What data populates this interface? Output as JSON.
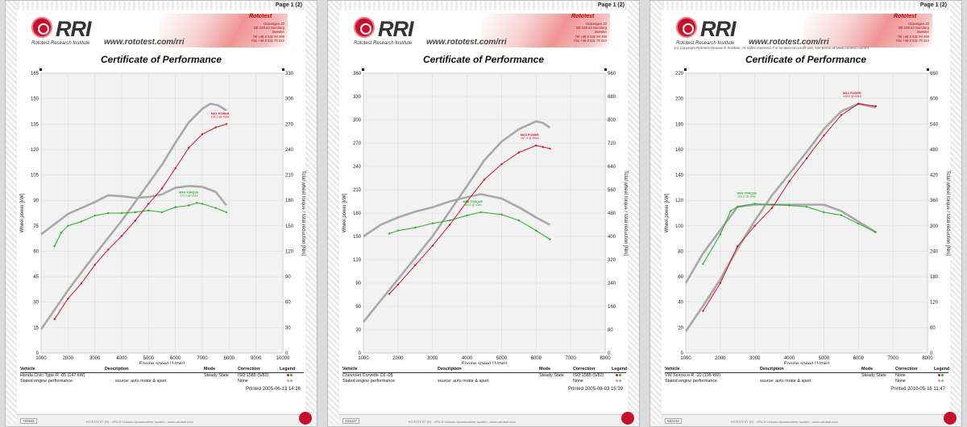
{
  "pages": [
    {
      "page_label": "Page 1 (2)",
      "logo_text": "RRI",
      "logo_sub": "Rototest Research Institute",
      "url": "www.rototest.com/rri",
      "banner_title": "Rototest",
      "banner_lines": "Glasvägen 20\nSE-145 63 Norsborg\nSweden\nTel +46 8 531 94 450\nFax +46 8 531 76 610",
      "copyline": "",
      "certificate_title": "Certificate of Performance",
      "printed": "Printed 2005-06-13 14:36",
      "footer_id": "782641",
      "footer_text": "ROTOTEST (R) - VPA-R chassis dynamometer system - www.rototest.com",
      "table": {
        "headers": {
          "vehicle": "Vehicle",
          "description": "Description",
          "mode": "Mode",
          "correction": "Correction",
          "legend": "Legend"
        },
        "row1": {
          "vehicle": "Honda Civic Type-R -05 (147 kW)",
          "description": "",
          "mode": "Steady State",
          "correction": "ISO 1585 (5/82)"
        },
        "row2": {
          "vehicle": "Stated engine performance",
          "description": "source: auto motor & sport",
          "mode": "",
          "correction": "None"
        }
      }
    },
    {
      "page_label": "Page 1 (2)",
      "logo_text": "RRI",
      "logo_sub": "Rototest Research Institute",
      "url": "www.rototest.com/rri",
      "banner_title": "Rototest",
      "banner_lines": "Glasvägen 20\nSE-145 63 Norsborg\nSweden\nTel +46 8 531 94 450\nFax +46 8 531 76 610",
      "copyline": "",
      "certificate_title": "Certificate of Performance",
      "printed": "Printed 2005-08-03 15:39",
      "footer_id": "231327",
      "footer_text": "ROTOTEST (R) - VPA-R chassis dynamometer system - www.rototest.com",
      "table": {
        "headers": {
          "vehicle": "Vehicle",
          "description": "Description",
          "mode": "Mode",
          "correction": "Correction",
          "legend": "Legend"
        },
        "row1": {
          "vehicle": "Chevrolet Corvette C6 -05",
          "description": "",
          "mode": "Steady State",
          "correction": "ISO 1585 (5/82)"
        },
        "row2": {
          "vehicle": "Stated engine performance",
          "description": "source: auto motor & sport",
          "mode": "",
          "correction": "None"
        }
      }
    },
    {
      "page_label": "Page 1 (2)",
      "logo_text": "RRI",
      "logo_sub": "Rototest Research Institute",
      "url": "www.rototest.com/rri",
      "banner_title": "Rototest",
      "banner_lines": "Glasvägen 20\nSE-145 63 Norsborg\nSweden\nTel +46 8 531 94 450\nFax +46 8 531 76 610",
      "copyline": "(c) Copyright Rototest Research Institute. All rights reserved. For limited non-profit use, see terms at www.rototest.com/rri",
      "certificate_title": "Certificate of Performance",
      "printed": "Printed 2010-05-18 11:47",
      "footer_id": "592194",
      "footer_text": "ROTOTEST (R) - VPA-R chassis dynamometer system - www.rototest.com",
      "table": {
        "headers": {
          "vehicle": "Vehicle",
          "description": "Description",
          "mode": "Mode",
          "correction": "Correction",
          "legend": "Legend"
        },
        "row1": {
          "vehicle": "VW Scirocco R -10 (195 kW)",
          "description": "",
          "mode": "Steady State",
          "correction": "None"
        },
        "row2": {
          "vehicle": "Stated engine performance",
          "description": "source: auto motor & sport",
          "mode": "",
          "correction": "None"
        }
      }
    }
  ],
  "colors": {
    "power": "#d0102a",
    "torque": "#22b022",
    "stated": "#a8a8a8",
    "grid": "#dddddd",
    "plotbg": "#f2f2f2"
  },
  "chart_data": [
    {
      "type": "line",
      "title": "",
      "xlabel": "Engine speed [1/min]",
      "ylabel": "Wheel power [kW]",
      "y2label": "Total wheel torque / total reduction [Nm]",
      "xlim": [
        1000,
        10000
      ],
      "xticks": [
        1000,
        2000,
        3000,
        4000,
        5000,
        6000,
        7000,
        8000,
        9000,
        10000
      ],
      "ylim": [
        0,
        165
      ],
      "yticks": [
        0,
        15,
        30,
        45,
        60,
        75,
        90,
        105,
        120,
        135,
        150,
        165
      ],
      "y2lim": [
        0,
        330
      ],
      "y2ticks": [
        0,
        30,
        60,
        90,
        120,
        150,
        180,
        210,
        240,
        270,
        300,
        330
      ],
      "annotations": {
        "power_label": "MAX POWER",
        "power_value": "135.2 @ 7898",
        "torque_label": "MAX TORQUE",
        "torque_value": "177.2 @ 6814"
      },
      "series": [
        {
          "name": "Wheel power",
          "axis": "y",
          "role": "power",
          "x": [
            1500,
            2000,
            2500,
            3000,
            3500,
            4000,
            4500,
            5000,
            5500,
            6000,
            6500,
            7000,
            7500,
            7900
          ],
          "y": [
            20,
            32,
            41,
            52,
            61,
            69,
            78,
            88,
            97,
            109,
            121,
            129,
            133,
            135
          ]
        },
        {
          "name": "Wheel torque",
          "axis": "y2",
          "role": "torque",
          "x": [
            1500,
            1750,
            2000,
            2500,
            3000,
            3500,
            4000,
            4500,
            5000,
            5500,
            6000,
            6500,
            6800,
            7000,
            7500,
            7900
          ],
          "y": [
            126,
            142,
            150,
            155,
            162,
            165,
            165,
            166,
            168,
            166,
            172,
            174,
            177,
            176,
            171,
            166
          ]
        },
        {
          "name": "Stated power",
          "axis": "y",
          "role": "stated",
          "x": [
            1000,
            2000,
            3000,
            4000,
            5000,
            5500,
            6000,
            6500,
            7000,
            7300,
            7600,
            7900
          ],
          "y": [
            14,
            37,
            58,
            78,
            100,
            111,
            124,
            136,
            144,
            147,
            146,
            143
          ]
        },
        {
          "name": "Stated torque",
          "axis": "y2",
          "role": "stated",
          "x": [
            1000,
            2000,
            3000,
            3500,
            4000,
            4500,
            5000,
            5500,
            6000,
            6500,
            7000,
            7500,
            7900
          ],
          "y": [
            140,
            164,
            178,
            186,
            185,
            183,
            184,
            187,
            195,
            197,
            196,
            190,
            174
          ]
        }
      ]
    },
    {
      "type": "line",
      "title": "",
      "xlabel": "Engine speed [1/min]",
      "ylabel": "Wheel power [kW]",
      "y2label": "Total wheel torque / total reduction [Nm]",
      "xlim": [
        1000,
        8000
      ],
      "xticks": [
        1000,
        2000,
        3000,
        4000,
        5000,
        6000,
        7000,
        8000
      ],
      "ylim": [
        0,
        360
      ],
      "yticks": [
        0,
        30,
        60,
        90,
        120,
        150,
        180,
        210,
        240,
        270,
        300,
        330,
        360
      ],
      "y2lim": [
        0,
        960
      ],
      "y2ticks": [
        0,
        80,
        160,
        240,
        320,
        400,
        480,
        560,
        640,
        720,
        800,
        880,
        960
      ],
      "annotations": {
        "power_label": "MAX POWER",
        "power_value": "267.4 @ 5918",
        "torque_label": "MAX TORQUE",
        "torque_value": "483.3 @ 4401"
      },
      "series": [
        {
          "name": "Wheel power",
          "axis": "y",
          "role": "power",
          "x": [
            1750,
            2000,
            2500,
            3000,
            3500,
            4000,
            4500,
            5000,
            5500,
            6000,
            6200,
            6400
          ],
          "y": [
            76,
            88,
            113,
            138,
            165,
            195,
            223,
            243,
            258,
            267,
            265,
            263
          ],
          "note": ""
        },
        {
          "name": "Wheel torque",
          "axis": "y2",
          "role": "torque",
          "x": [
            1750,
            2000,
            2500,
            3000,
            3500,
            4000,
            4400,
            5000,
            5500,
            6000,
            6400
          ],
          "y": [
            410,
            420,
            430,
            445,
            455,
            472,
            483,
            475,
            455,
            420,
            390
          ]
        },
        {
          "name": "Stated power",
          "axis": "y",
          "role": "stated",
          "x": [
            1000,
            2000,
            3000,
            4000,
            4500,
            5000,
            5500,
            6000,
            6200,
            6400
          ],
          "y": [
            40,
            95,
            150,
            215,
            248,
            272,
            288,
            298,
            296,
            290
          ]
        },
        {
          "name": "Stated torque",
          "axis": "y2",
          "role": "stated",
          "x": [
            1000,
            1500,
            2000,
            2500,
            3000,
            3500,
            4000,
            4400,
            5000,
            5500,
            6000,
            6400
          ],
          "y": [
            400,
            440,
            465,
            485,
            500,
            520,
            535,
            545,
            530,
            500,
            465,
            440
          ]
        }
      ]
    },
    {
      "type": "line",
      "title": "",
      "xlabel": "Engine speed [1/min]",
      "ylabel": "Wheel power [kW]",
      "y2label": "Total wheel torque / total reduction [Nm]",
      "xlim": [
        1000,
        8000
      ],
      "xticks": [
        1000,
        2000,
        3000,
        4000,
        5000,
        6000,
        7000,
        8000
      ],
      "ylim": [
        0,
        220
      ],
      "yticks": [
        0,
        20,
        40,
        60,
        80,
        100,
        120,
        140,
        160,
        180,
        200,
        220
      ],
      "y2lim": [
        0,
        660
      ],
      "y2ticks": [
        0,
        60,
        120,
        180,
        240,
        300,
        360,
        420,
        480,
        540,
        600,
        660
      ],
      "annotations": {
        "power_label": "MAX POWER",
        "power_value": "195.8 @ 6013",
        "torque_label": "MAX TORQUE",
        "torque_value": "353.8 @ 3041"
      },
      "series": [
        {
          "name": "Wheel power",
          "axis": "y",
          "role": "power",
          "x": [
            1500,
            2000,
            2500,
            3000,
            3500,
            4000,
            4500,
            5000,
            5500,
            6000,
            6500
          ],
          "y": [
            33,
            55,
            84,
            100,
            114,
            135,
            153,
            171,
            187,
            196,
            194
          ]
        },
        {
          "name": "Wheel torque",
          "axis": "y2",
          "role": "torque",
          "x": [
            1500,
            2000,
            2300,
            2500,
            3000,
            3500,
            4000,
            4500,
            5000,
            5500,
            6000,
            6500
          ],
          "y": [
            210,
            280,
            335,
            345,
            352,
            350,
            348,
            345,
            332,
            325,
            305,
            285
          ]
        },
        {
          "name": "Stated power",
          "axis": "y",
          "role": "stated",
          "x": [
            1000,
            1500,
            2000,
            2500,
            3000,
            3500,
            4000,
            4500,
            5000,
            5500,
            6000,
            6500
          ],
          "y": [
            17,
            37,
            58,
            82,
            104,
            124,
            141,
            158,
            176,
            190,
            196,
            193
          ]
        },
        {
          "name": "Stated torque",
          "axis": "y2",
          "role": "stated",
          "x": [
            1000,
            1500,
            2000,
            2500,
            3000,
            3500,
            4000,
            4500,
            5000,
            5500,
            6000,
            6500
          ],
          "y": [
            165,
            235,
            290,
            345,
            350,
            350,
            350,
            350,
            350,
            335,
            310,
            285
          ]
        }
      ]
    }
  ]
}
